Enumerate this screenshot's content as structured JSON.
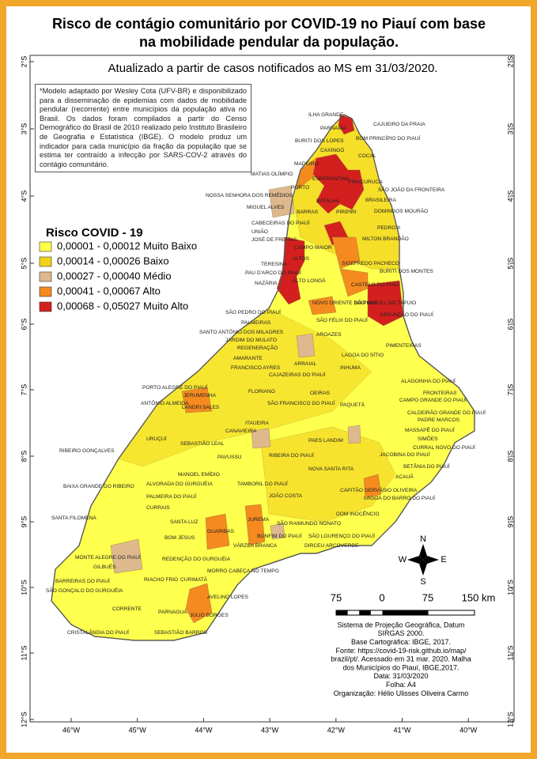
{
  "title_lines": [
    "Risco de contágio comunitário por COVID-19 no Piauí com base",
    "na mobilidade pendular da população."
  ],
  "subtitle": "Atualizado a partir de casos notificados ao  MS em 31/03/2020.",
  "note": "*Modelo adaptado por Wesley Cota (UFV-BR) e disponibilizado para a disseminação de epidemias com dados de mobilidade pendular (recorrente) entre municípios da população ativa no Brasil. Os dados foram compilados a partir do Censo Demográfico do Brasil de 2010 realizado pelo Instituto Brasileiro de Geografia e Estatística (IBGE). O modelo produz um indicador para cada município da fração da população que se estima ter contraído a infecção por SARS-COV-2 através do contágio comunitário.",
  "legend": {
    "title": "Risco COVID - 19",
    "items": [
      {
        "label": "0,00001 - 0,00012 Muito Baixo",
        "color": "#ffff4d"
      },
      {
        "label": "0,00014 - 0,00026 Baixo",
        "color": "#f2d21a"
      },
      {
        "label": "0,00027 - 0,00040 Médio",
        "color": "#deb98e"
      },
      {
        "label": "0,00041 - 0,00067 Alto",
        "color": "#f58a1f"
      },
      {
        "label": "0,00068 - 0,05027 Muito Alto",
        "color": "#d41f1f"
      }
    ]
  },
  "latitudes": [
    "2°S",
    "3°S",
    "4°S",
    "5°S",
    "6°S",
    "7°S",
    "8°S",
    "9°S",
    "10°S",
    "11°S",
    "12°S"
  ],
  "longitudes": [
    "46°W",
    "45°W",
    "44°W",
    "43°W",
    "42°W",
    "41°W",
    "40°W"
  ],
  "scale_labels": [
    "75",
    "0",
    "75",
    "150 km"
  ],
  "compass": {
    "north": "N",
    "south": "S",
    "east": "E",
    "west": "W"
  },
  "credits": [
    "Sistema de Projeção Geográfica, Datum",
    "SIRGAS 2000.",
    "Base Cartográfica: IBGE, 2017.",
    "Fonte: https://covid-19-risk.github.io/map/",
    "brazil/pt/. Acessado em 31 mar. 2020. Malha",
    "dos Municípios do Piauí, IBGE,2017.",
    "Data: 31/03/2020",
    "Folha:  A4",
    "Organização: Hélio Ulisses Oliveira Carmo"
  ],
  "places": [
    "ILHA GRANDE",
    "PARNAÍBA",
    "CAJUEIRO DA PRAIA",
    "BURITI DOS LOPES",
    "BOM PRINCÍPIO DO PIAUÍ",
    "CAXINGÓ",
    "COCAL",
    "MADEIRO",
    "MATIAS OLÍMPIO",
    "ESPERANTINA",
    "PIRACURUCA",
    "PORTO",
    "NOSSA SENHORA DOS REMÉDIOS",
    "SÃO JOÃO DA FRONTEIRA",
    "BRASILEIRA",
    "MIGUEL ALVES",
    "BATALHA",
    "BARRAS",
    "PIRIPIRI",
    "DOMINGOS MOURÃO",
    "CABECEIRAS DO PIAUÍ",
    "UNIÃO",
    "PEDRO II",
    "CAMPO MAIOR",
    "JOSÉ DE FREITAS",
    "MILTON BRANDÃO",
    "ALTOS",
    "TERESINA",
    "SIGEFREDO PACHECO",
    "BURITI DOS MONTES",
    "PAU D'ARCO DO PIAUÍ",
    "ALTO LONGÁ",
    "NAZÁRIA",
    "CASTELO DO PIAUÍ",
    "SÃO MIGUEL DO TAPUIO",
    "ASSUNÇÃO DO PIAUÍ",
    "SÃO PEDRO DO PIAUÍ",
    "NOVO ORIENTE DO PIAUÍ",
    "SÃO FÉLIX DO PIAUÍ",
    "PALMEIRAS",
    "SANTO ANTÔNIO DOS MILAGRES",
    "JARDIM DO MULATO",
    "AROAZES",
    "REGENERAÇÃO",
    "AMARANTE",
    "PIMENTEIRAS",
    "LAGOA DO SÍTIO",
    "FRANCISCO AYRES",
    "ARRAIAL",
    "INHUMA",
    "CAJAZEIRAS DO PIAUÍ",
    "ALAGOINHA DO PIAUÍ",
    "PORTO ALEGRE DO PIAUÍ",
    "FLORIANO",
    "OEIRAS",
    "FRONTEIRAS",
    "JERUMENHA",
    "ANTÔNIO ALMEIDA",
    "LANDRI SALES",
    "SÃO FRANCISCO DO PIAUÍ",
    "PAQUETÁ",
    "CAMPO GRANDE DO PIAUÍ",
    "CALDEIRÃO GRANDE DO PIAUÍ",
    "PADRE MARCOS",
    "ITAUEIRA",
    "CANAVIEIRA",
    "MASSAPÊ DO PIAUÍ",
    "URUÇUÍ",
    "SEBASTIÃO LEAL",
    "PAES LANDIM",
    "SIMÕES",
    "CURRAL NOVO DO PIAUÍ",
    "RIBEIRO GONÇALVES",
    "PAVUSSU",
    "RIBEIRA DO PIAUÍ",
    "JACOBINA DO PIAUÍ",
    "BETÂNIA DO PIAUÍ",
    "NOVA SANTA RITA",
    "ACAUÃ",
    "MANOEL EMÍDIO",
    "BAIXA GRANDE DO RIBEIRO",
    "ALVORADA DO GURGUÉIA",
    "TAMBORIL DO PIAUÍ",
    "CAPITÃO GERVÁSIO OLIVEIRA",
    "PALMEIRA DO PIAUÍ",
    "JOÃO COSTA",
    "LAGOA DO BARRO DO PIAUÍ",
    "CURRAIS",
    "DOM INOCÊNCIO",
    "SANTA FILOMENA",
    "SANTA LUZ",
    "GUARIBAS",
    "JUREMA",
    "SÃO RAIMUNDO NONATO",
    "BOM JESUS",
    "BONFIM DO PIAUÍ",
    "SÃO LOURENÇO DO PIAUÍ",
    "VÁRZEA BRANCA",
    "DIRCEU ARCOVERDE",
    "MONTE ALEGRE DO PIAUÍ",
    "REDENÇÃO DO GURGUÉIA",
    "GILBUÉS",
    "MORRO CABEÇA NO TEMPO",
    "BARREIRAS DO PIAUÍ",
    "RIACHO FRIO",
    "CURIMATÁ",
    "SÃO GONÇALO DO GURGUÉIA",
    "AVELINO LOPES",
    "CORRENTE",
    "PARNAGUÁ",
    "JÚLIO BORGES",
    "CRISTALÂNDIA DO PIAUÍ",
    "SEBASTIÃO BARROS"
  ]
}
